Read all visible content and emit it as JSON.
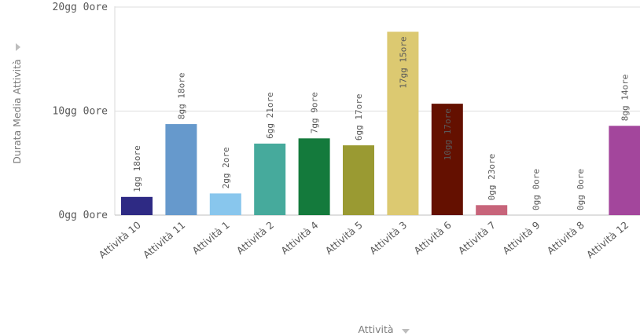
{
  "chart_data": {
    "type": "bar",
    "xlabel": "Attività",
    "ylabel": "Durata Media Attività",
    "ylim": [
      0,
      20
    ],
    "y_unit": "days",
    "y_ticks": [
      {
        "value": 0,
        "label": "0gg 0ore"
      },
      {
        "value": 10,
        "label": "10gg 0ore"
      },
      {
        "value": 20,
        "label": "20gg 0ore"
      }
    ],
    "grid": true,
    "categories": [
      "Attività 10",
      "Attività 11",
      "Attività 1",
      "Attività 2",
      "Attività 4",
      "Attività 5",
      "Attività 3",
      "Attività 6",
      "Attività 7",
      "Attività 9",
      "Attività 8",
      "Attività 12"
    ],
    "values": [
      1.75,
      8.75,
      2.0833,
      6.875,
      7.375,
      6.7083,
      17.625,
      10.7083,
      0.9583,
      0,
      0,
      8.5833
    ],
    "data_labels": [
      "1gg 18ore",
      "8gg 18ore",
      "2gg 2ore",
      "6gg 21ore",
      "7gg 9ore",
      "6gg 17ore",
      "17gg 15ore",
      "10gg 17ore",
      "0gg 23ore",
      "0gg 0ore",
      "0gg 0ore",
      "8gg 14ore"
    ],
    "colors": [
      "#2e2a84",
      "#6699cc",
      "#88c6ed",
      "#46aa9c",
      "#147a3c",
      "#9a9a32",
      "#dcc971",
      "#641000",
      "#c7647a",
      "#cfcfcf",
      "#cfcfcf",
      "#a3469c"
    ]
  }
}
